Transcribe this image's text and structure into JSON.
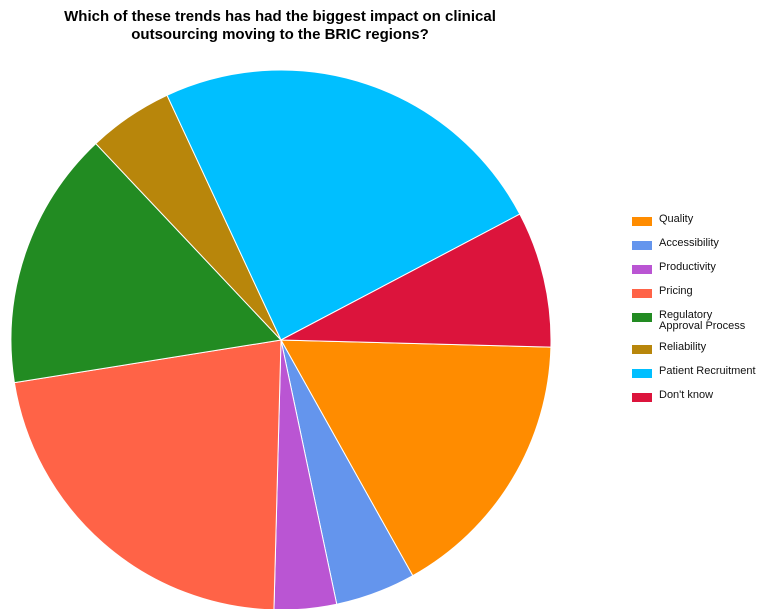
{
  "chart_data": {
    "type": "pie",
    "title": "Which of these trends has had the biggest impact on clinical outsourcing moving to the BRIC regions?",
    "title_lines": [
      "Which of these trends has had the biggest impact on clinical",
      "outsourcing moving to the BRIC regions?"
    ],
    "categories": [
      "Quality",
      "Accessibility",
      "Productivity",
      "Pricing",
      "Regulatory Approval Process",
      "Reliability",
      "Patient Recruitment",
      "Don't know"
    ],
    "legend_labels": [
      "Quality",
      "Accessibility",
      "Productivity",
      "Pricing",
      "Regulatory\nApproval Process",
      "Reliability",
      "Patient Recruitment",
      "Don't know"
    ],
    "values": [
      16.8,
      4.9,
      3.8,
      22.5,
      15.8,
      5.2,
      24.7,
      8.3
    ],
    "colors": [
      "#FF8C00",
      "#6495ED",
      "#BA55D3",
      "#FF6347",
      "#228B22",
      "#B8860B",
      "#00BFFF",
      "#DC143C"
    ],
    "legend_placement": "right"
  }
}
